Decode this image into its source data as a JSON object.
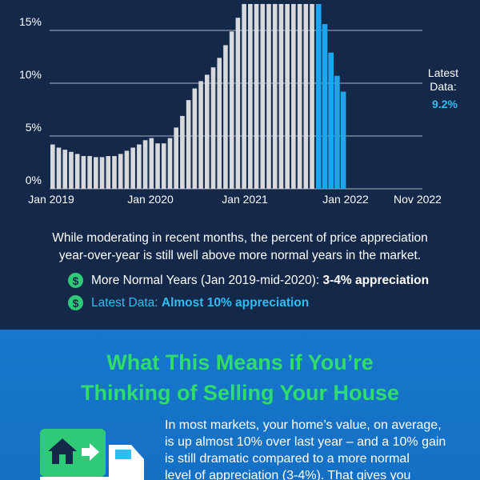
{
  "chart_data": {
    "type": "bar",
    "x_ticks": [
      "Jan 2019",
      "Jan 2020",
      "Jan 2021",
      "Jan 2022",
      "Nov 2022"
    ],
    "y_ticks": [
      "0%",
      "5%",
      "10%",
      "15%"
    ],
    "ylim": [
      0,
      17.5
    ],
    "series": [
      {
        "values": [
          4.2,
          3.9,
          3.7,
          3.5,
          3.3,
          3.1,
          3.1,
          3.0,
          3.0,
          3.1,
          3.1,
          3.3,
          3.6,
          3.9,
          4.2,
          4.6,
          4.8,
          4.3,
          4.3,
          4.8,
          5.8,
          6.9,
          8.4,
          9.5,
          10.2,
          10.8,
          11.5,
          12.4,
          13.6,
          14.9,
          16.2,
          17.5,
          17.5,
          17.5,
          17.5,
          17.5,
          17.5,
          17.5,
          17.5,
          17.5,
          17.5,
          17.5,
          17.5,
          17.5,
          15.6,
          12.9,
          10.7,
          9.2
        ],
        "highlight_from_index": 43,
        "colors": {
          "normal": "#d7d9dc",
          "highlight": "#1aa7ee"
        }
      }
    ],
    "annotation": {
      "label_lines": [
        "Latest",
        "Data:"
      ],
      "value": "9.2%"
    },
    "grid": true
  },
  "caption": {
    "line1": "While moderating in recent months, the percent of price appreciation",
    "line2": "year-over-year is still well above more normal years in the market."
  },
  "legend": [
    {
      "icon": "dollar-icon",
      "text": "More Normal Years (Jan 2019-mid-2020): ",
      "bold": "3-4% appreciation"
    },
    {
      "icon": "dollar-icon",
      "text": "Latest Data: ",
      "bold": "Almost 10% appreciation"
    }
  ],
  "section": {
    "heading_line1": "What This Means if You’re",
    "heading_line2": "Thinking of Selling Your House",
    "body_lines": [
      "In most markets, your home’s value, on average,",
      "is up almost 10% over last year – and a 10% gain",
      "is still dramatic compared to a more normal",
      "level of appreciation (3-4%). That gives you"
    ]
  },
  "colors": {
    "top_bg": "#14294a",
    "bottom_bg": "#1777cc",
    "accent_green": "#2fdc6c",
    "accent_blue": "#2fbdf2"
  }
}
